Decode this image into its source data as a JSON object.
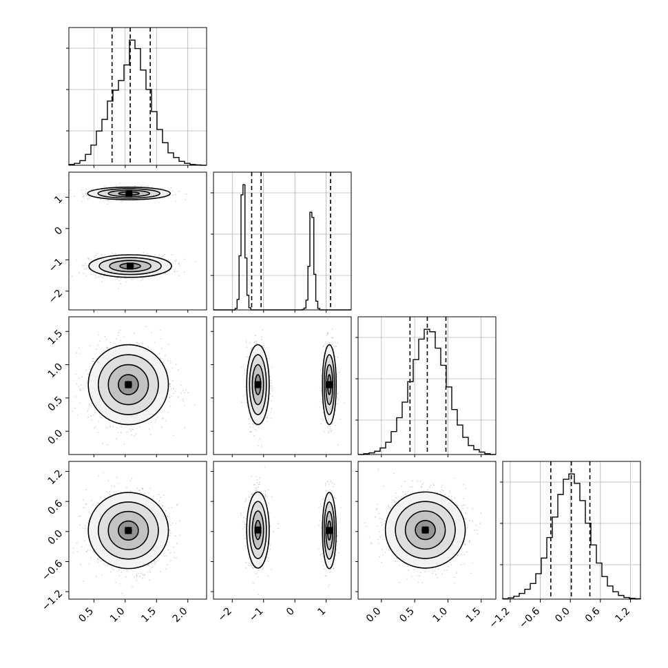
{
  "chart_data": {
    "type": "corner",
    "n_params": 4,
    "colors": {
      "line": "#000000",
      "grid": "#b0b0b0",
      "scatter": "#808080",
      "frame": "#000000"
    },
    "grid": true,
    "params": [
      {
        "range": [
          0.1,
          2.3
        ],
        "ticks": [
          0.5,
          1.0,
          1.5,
          2.0
        ],
        "tick_labels": [
          "0.5",
          "1.0",
          "1.5",
          "2.0"
        ],
        "quantiles": [
          0.79,
          1.08,
          1.4
        ]
      },
      {
        "range": [
          -2.6,
          1.8
        ],
        "ticks": [
          -2,
          -1,
          0,
          1
        ],
        "tick_labels": [
          "−2",
          "−1",
          "0",
          "1"
        ],
        "quantiles": [
          -1.38,
          -1.08,
          1.14
        ]
      },
      {
        "range": [
          -0.35,
          1.72
        ],
        "ticks": [
          0.0,
          0.5,
          1.0,
          1.5
        ],
        "tick_labels": [
          "0.0",
          "0.5",
          "1.0",
          "1.5"
        ],
        "quantiles": [
          0.43,
          0.69,
          0.97
        ]
      },
      {
        "range": [
          -1.35,
          1.4
        ],
        "ticks": [
          -1.2,
          -0.6,
          0.0,
          0.6,
          1.2
        ],
        "tick_labels": [
          "−1.2",
          "−0.6",
          "0.0",
          "0.6",
          "1.2"
        ],
        "quantiles": [
          -0.39,
          0.02,
          0.39
        ]
      }
    ],
    "histograms": [
      {
        "param": 0,
        "bin_edges_range": [
          0.1,
          2.3
        ],
        "counts": [
          2,
          5,
          12,
          28,
          52,
          88,
          118,
          165,
          193,
          218,
          258,
          322,
          300,
          245,
          195,
          138,
          92,
          58,
          32,
          20,
          10,
          5,
          2,
          1,
          0
        ]
      },
      {
        "param": 1,
        "bin_edges_range": [
          -2.6,
          1.8
        ],
        "counts": [
          0,
          0,
          0,
          0,
          0,
          0,
          0,
          0,
          0,
          0,
          0,
          4,
          30,
          155,
          330,
          359,
          149,
          42,
          6,
          0,
          0,
          0,
          0,
          0,
          0,
          0,
          0,
          0,
          0,
          0,
          0,
          0,
          0,
          0,
          0,
          0,
          0,
          0,
          0,
          0,
          0,
          0,
          0,
          0,
          0,
          1,
          5,
          28,
          125,
          280,
          265,
          102,
          25,
          4,
          0,
          0,
          0,
          0,
          0,
          0,
          0,
          0,
          0,
          0,
          0,
          0,
          0,
          0,
          0,
          0
        ]
      },
      {
        "param": 2,
        "bin_edges_range": [
          -0.35,
          1.72
        ],
        "counts": [
          0,
          2,
          4,
          8,
          16,
          30,
          56,
          90,
          128,
          178,
          232,
          282,
          306,
          300,
          260,
          218,
          165,
          110,
          72,
          42,
          22,
          12,
          6,
          2,
          0
        ]
      },
      {
        "param": 3,
        "bin_edges_range": [
          -1.35,
          1.4
        ],
        "counts": [
          1,
          3,
          7,
          14,
          24,
          38,
          62,
          100,
          150,
          200,
          255,
          292,
          305,
          282,
          240,
          185,
          132,
          88,
          55,
          32,
          18,
          9,
          4,
          2,
          1
        ]
      }
    ],
    "pairs": [
      {
        "x": 0,
        "y": 1,
        "modes": [
          {
            "cx": 1.06,
            "cy": 1.12,
            "sx": 0.33,
            "sy": 0.1,
            "w": 0.45
          },
          {
            "cx": 1.08,
            "cy": -1.2,
            "sx": 0.33,
            "sy": 0.18,
            "w": 0.55
          }
        ]
      },
      {
        "x": 0,
        "y": 2,
        "modes": [
          {
            "cx": 1.05,
            "cy": 0.7,
            "sx": 0.32,
            "sy": 0.3,
            "w": 1.0
          }
        ]
      },
      {
        "x": 1,
        "y": 2,
        "modes": [
          {
            "cx": -1.18,
            "cy": 0.7,
            "sx": 0.18,
            "sy": 0.3,
            "w": 0.55
          },
          {
            "cx": 1.1,
            "cy": 0.7,
            "sx": 0.11,
            "sy": 0.3,
            "w": 0.45
          }
        ]
      },
      {
        "x": 0,
        "y": 3,
        "modes": [
          {
            "cx": 1.05,
            "cy": 0.02,
            "sx": 0.32,
            "sy": 0.38,
            "w": 1.0
          }
        ]
      },
      {
        "x": 1,
        "y": 3,
        "modes": [
          {
            "cx": -1.18,
            "cy": 0.03,
            "sx": 0.18,
            "sy": 0.38,
            "w": 0.55
          },
          {
            "cx": 1.1,
            "cy": 0.02,
            "sx": 0.11,
            "sy": 0.38,
            "w": 0.45
          }
        ]
      },
      {
        "x": 2,
        "y": 3,
        "modes": [
          {
            "cx": 0.66,
            "cy": 0.03,
            "sx": 0.3,
            "sy": 0.38,
            "w": 1.0
          }
        ]
      }
    ],
    "contour_levels_sigma": [
      0.5,
      1.0,
      1.5,
      2.0
    ]
  }
}
